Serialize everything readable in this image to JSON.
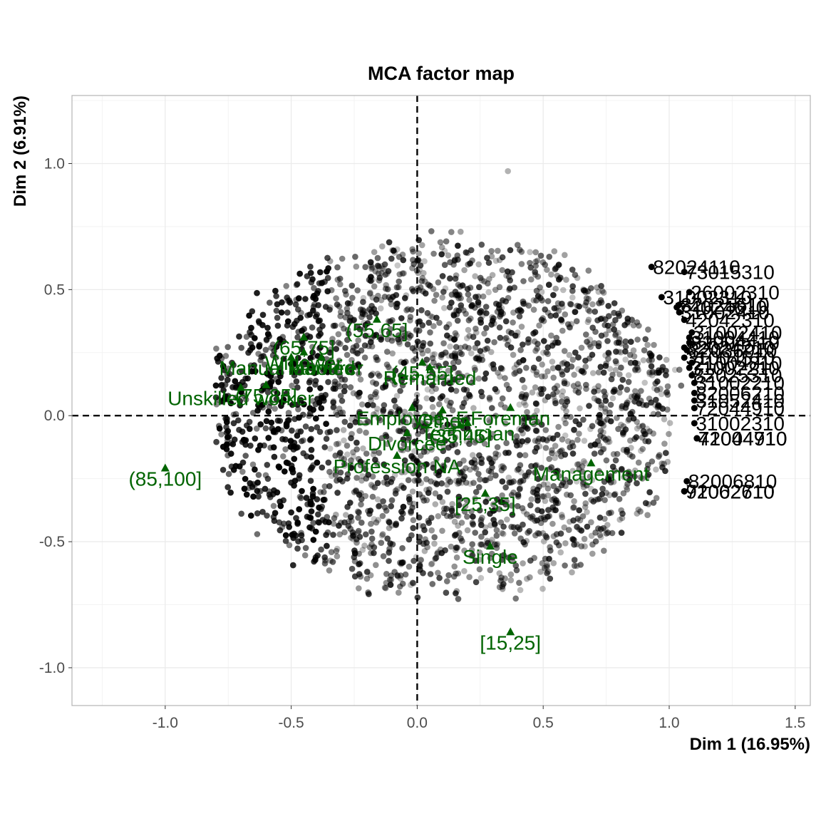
{
  "chart_data": {
    "type": "scatter",
    "title": "MCA factor map",
    "xlabel": "Dim 1 (16.95%)",
    "ylabel": "Dim 2 (6.91%)",
    "xlim": [
      -1.37,
      1.56
    ],
    "ylim": [
      -1.15,
      1.27
    ],
    "x_ticks": [
      -1.0,
      -0.5,
      0.0,
      0.5,
      1.0,
      1.5
    ],
    "x_tick_labels": [
      "-1.0",
      "-0.5",
      "0.0",
      "0.5",
      "1.0",
      "1.5"
    ],
    "y_ticks": [
      -1.0,
      -0.5,
      0.0,
      0.5,
      1.0
    ],
    "y_tick_labels": [
      "-1.0",
      "-0.5",
      "0.0",
      "0.5",
      "1.0"
    ],
    "grid": true,
    "reference_lines": {
      "x": 0,
      "y": 0,
      "style": "dashed"
    },
    "colors": {
      "individuals": "#000000",
      "categories": "#006400",
      "grid": "#ebebeb",
      "panel_border": "#b3b3b3"
    },
    "individual_cloud": {
      "description_values": "several thousand semi-transparent individual points, roughly elliptical cloud",
      "center": [
        0.1,
        0.0
      ],
      "approx_x_range": [
        -0.8,
        1.1
      ],
      "approx_y_range": [
        -0.75,
        0.98
      ]
    },
    "labeled_individuals": [
      {
        "label": "82024110",
        "x": 0.93,
        "y": 0.59
      },
      {
        "label": "73015310",
        "x": 1.06,
        "y": 0.57
      },
      {
        "label": "26002310",
        "x": 1.08,
        "y": 0.49
      },
      {
        "label": "31002310",
        "x": 0.97,
        "y": 0.47
      },
      {
        "label": "82025610",
        "x": 1.04,
        "y": 0.44
      },
      {
        "label": "74024610",
        "x": 1.03,
        "y": 0.43
      },
      {
        "label": "31002410",
        "x": 1.04,
        "y": 0.41
      },
      {
        "label": "42042310",
        "x": 1.06,
        "y": 0.38
      },
      {
        "label": "31002410",
        "x": 1.09,
        "y": 0.33
      },
      {
        "label": "31004410",
        "x": 1.08,
        "y": 0.31
      },
      {
        "label": "82004410",
        "x": 1.08,
        "y": 0.29
      },
      {
        "label": "82024210",
        "x": 1.06,
        "y": 0.27
      },
      {
        "label": "82036910",
        "x": 1.07,
        "y": 0.26
      },
      {
        "label": "31004510",
        "x": 1.06,
        "y": 0.23
      },
      {
        "label": "21004810",
        "x": 1.09,
        "y": 0.21
      },
      {
        "label": "31002210",
        "x": 1.08,
        "y": 0.19
      },
      {
        "label": "82025310",
        "x": 1.09,
        "y": 0.16
      },
      {
        "label": "31002210",
        "x": 1.1,
        "y": 0.13
      },
      {
        "label": "82006210",
        "x": 1.1,
        "y": 0.09
      },
      {
        "label": "31052410",
        "x": 1.1,
        "y": 0.06
      },
      {
        "label": "72044910",
        "x": 1.1,
        "y": 0.03
      },
      {
        "label": "31002310",
        "x": 1.1,
        "y": -0.03
      },
      {
        "label": "72044710",
        "x": 1.11,
        "y": -0.09
      },
      {
        "label": "41004910",
        "x": 1.11,
        "y": -0.09
      },
      {
        "label": "82006810",
        "x": 1.07,
        "y": -0.26
      },
      {
        "label": "72002710",
        "x": 1.06,
        "y": -0.3
      },
      {
        "label": "91062610",
        "x": 1.06,
        "y": -0.3
      }
    ],
    "categories": [
      {
        "label": "(85,100]",
        "x": -1.0,
        "y": -0.21
      },
      {
        "label": "Unskilled worker",
        "x": -0.7,
        "y": 0.11
      },
      {
        "label": "(75,85]",
        "x": -0.6,
        "y": 0.12
      },
      {
        "label": "Manual labourer",
        "x": -0.5,
        "y": 0.23
      },
      {
        "label": "Widower",
        "x": -0.45,
        "y": 0.25
      },
      {
        "label": "(65,75]",
        "x": -0.45,
        "y": 0.31
      },
      {
        "label": "Married",
        "x": -0.38,
        "y": 0.23
      },
      {
        "label": "(55,65]",
        "x": -0.16,
        "y": 0.38
      },
      {
        "label": "Profession NA",
        "x": -0.08,
        "y": -0.16
      },
      {
        "label": "Divorcee",
        "x": -0.04,
        "y": -0.07
      },
      {
        "label": "Employee_F",
        "x": -0.02,
        "y": 0.03
      },
      {
        "label": "(45,55]",
        "x": 0.02,
        "y": 0.21
      },
      {
        "label": "Remarried",
        "x": 0.05,
        "y": 0.19
      },
      {
        "label": "Other",
        "x": 0.1,
        "y": 0.02
      },
      {
        "label": "(35,45]",
        "x": 0.17,
        "y": -0.04
      },
      {
        "label": "Technician",
        "x": 0.2,
        "y": -0.03
      },
      {
        "label": "Foreman",
        "x": 0.37,
        "y": 0.03
      },
      {
        "label": "[25,35]",
        "x": 0.27,
        "y": -0.31
      },
      {
        "label": "Single",
        "x": 0.29,
        "y": -0.52
      },
      {
        "label": "[15,25]",
        "x": 0.37,
        "y": -0.86
      },
      {
        "label": "Management",
        "x": 0.69,
        "y": -0.19
      }
    ]
  }
}
